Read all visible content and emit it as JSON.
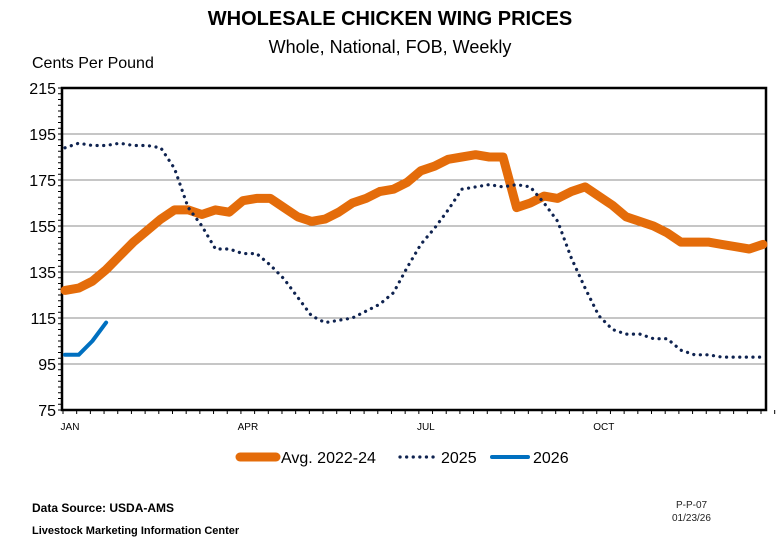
{
  "chart_data": {
    "type": "line",
    "title": "WHOLESALE CHICKEN WING PRICES",
    "subtitle": "Whole, National, FOB, Weekly",
    "ylabel": "Cents Per Pound",
    "xlabel": "",
    "ylim": [
      75,
      215
    ],
    "yticks": [
      75,
      95,
      115,
      135,
      155,
      175,
      195,
      215
    ],
    "x_unit": "week of year",
    "xlim": [
      1,
      52
    ],
    "xtick_labels": [
      {
        "label": "JAN",
        "week": 1
      },
      {
        "label": "APR",
        "week": 14
      },
      {
        "label": "JUL",
        "week": 27
      },
      {
        "label": "OCT",
        "week": 40
      }
    ],
    "grid": true,
    "legend": "bottom",
    "series": [
      {
        "name": "Avg. 2022-24",
        "color": "#E46C0A",
        "style": "thick-solid",
        "values": [
          127,
          128,
          131,
          136,
          142,
          148,
          153,
          158,
          162,
          162,
          160,
          162,
          161,
          166,
          167,
          167,
          163,
          159,
          157,
          158,
          161,
          165,
          167,
          170,
          171,
          174,
          179,
          181,
          184,
          185,
          186,
          185,
          185,
          163,
          165,
          168,
          167,
          170,
          172,
          168,
          164,
          159,
          157,
          155,
          152,
          148,
          148,
          148,
          147,
          146,
          145,
          147
        ]
      },
      {
        "name": "2025",
        "color": "#0F2350",
        "style": "dotted",
        "values": [
          189,
          191,
          190,
          190,
          191,
          190,
          190,
          189,
          180,
          163,
          155,
          145,
          145,
          143,
          143,
          138,
          132,
          124,
          116,
          113,
          114,
          115,
          118,
          121,
          126,
          137,
          147,
          154,
          162,
          171,
          172,
          173,
          172,
          173,
          172,
          165,
          157,
          141,
          128,
          116,
          110,
          108,
          108,
          106,
          106,
          101,
          99,
          99,
          98,
          98,
          98,
          98
        ]
      },
      {
        "name": "2026",
        "color": "#0070C0",
        "style": "solid",
        "values": [
          99,
          99,
          105,
          113
        ]
      }
    ]
  },
  "footer": {
    "source": "Data Source:  USDA-AMS",
    "organization": "Livestock Marketing Information Center",
    "code": "P-P-07",
    "date": "01/23/26"
  }
}
